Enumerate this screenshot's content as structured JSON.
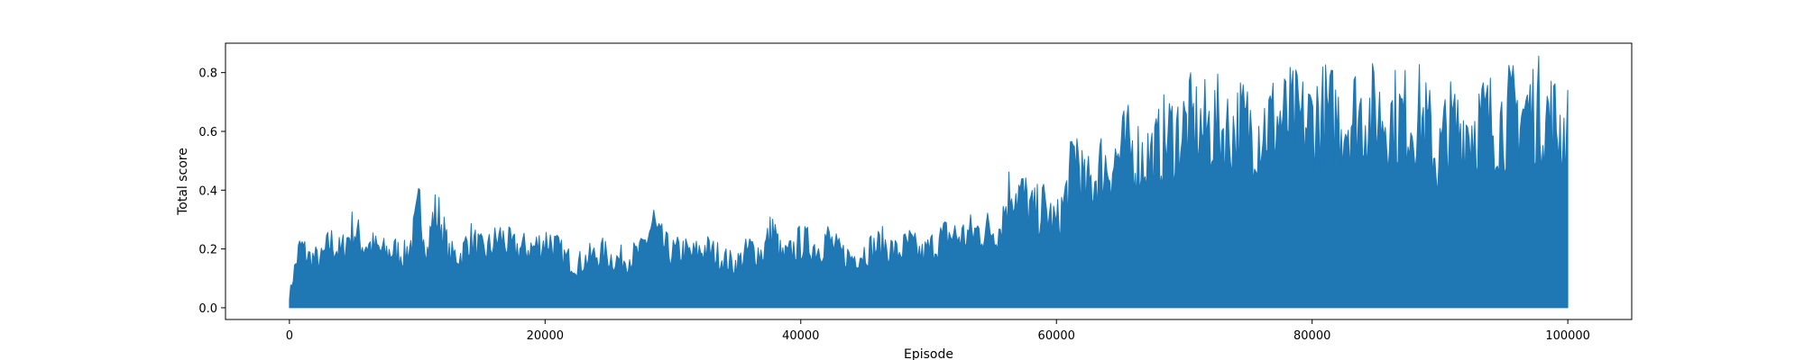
{
  "chart_data": {
    "type": "line",
    "title": "",
    "xlabel": "Episode",
    "ylabel": "Total score",
    "xlim": [
      -5000,
      105000
    ],
    "ylim": [
      -0.04,
      0.9
    ],
    "x_ticks": [
      0,
      20000,
      40000,
      60000,
      80000,
      100000
    ],
    "y_ticks": [
      0.0,
      0.2,
      0.4,
      0.6,
      0.8
    ],
    "x_tick_labels": [
      "0",
      "20000",
      "40000",
      "60000",
      "80000",
      "100000"
    ],
    "y_tick_labels": [
      "0.0",
      "0.2",
      "0.4",
      "0.6",
      "0.8"
    ],
    "grid": false,
    "legend": "none",
    "line_color": "#1f77b4",
    "series": [
      {
        "x": [
          0,
          300,
          700,
          900,
          1500,
          2500,
          3200,
          4000,
          4800,
          5000,
          5800,
          6000,
          7500,
          8200,
          9000,
          9600,
          10200,
          10800,
          11300,
          11800,
          12500,
          13500,
          14000,
          15200,
          16500,
          17500,
          19000,
          20300,
          21500,
          22500,
          23500,
          24500,
          25500,
          26500,
          27500,
          28500,
          28800,
          29800,
          30800,
          31500,
          32500,
          33500,
          34800,
          35300,
          36000,
          37000,
          37800,
          38500,
          39000,
          40000,
          41500,
          42000,
          43000,
          44000,
          45500,
          46500,
          47500,
          48500,
          49500,
          50500,
          51500,
          52500,
          53500,
          54500,
          55500,
          56500,
          57500,
          58200,
          59000,
          60000,
          60600,
          61100,
          61500,
          62200,
          62800,
          63500,
          64500,
          65500,
          66500,
          67800,
          68500,
          69500,
          70500,
          71500,
          72500,
          73500,
          74500,
          75500,
          76500,
          77500,
          78500,
          79500,
          80500,
          81500,
          82500,
          83500,
          84500,
          85500,
          86500,
          87500,
          88500,
          89300,
          89800,
          90500,
          91500,
          92500,
          93500,
          94500,
          95500,
          96500,
          97500,
          98500,
          99300,
          100000
        ],
        "y": [
          0.05,
          0.14,
          0.24,
          0.27,
          0.22,
          0.21,
          0.29,
          0.24,
          0.33,
          0.35,
          0.27,
          0.28,
          0.24,
          0.25,
          0.23,
          0.29,
          0.45,
          0.25,
          0.41,
          0.39,
          0.23,
          0.23,
          0.31,
          0.24,
          0.31,
          0.26,
          0.26,
          0.3,
          0.22,
          0.19,
          0.22,
          0.24,
          0.21,
          0.22,
          0.24,
          0.38,
          0.31,
          0.24,
          0.25,
          0.23,
          0.26,
          0.23,
          0.19,
          0.21,
          0.26,
          0.24,
          0.35,
          0.22,
          0.23,
          0.29,
          0.26,
          0.31,
          0.24,
          0.22,
          0.26,
          0.28,
          0.24,
          0.28,
          0.23,
          0.28,
          0.32,
          0.31,
          0.33,
          0.34,
          0.35,
          0.54,
          0.48,
          0.41,
          0.44,
          0.36,
          0.46,
          0.57,
          0.72,
          0.51,
          0.55,
          0.62,
          0.64,
          0.7,
          0.66,
          0.67,
          0.74,
          0.77,
          0.8,
          0.78,
          0.8,
          0.77,
          0.8,
          0.78,
          0.81,
          0.82,
          0.83,
          0.8,
          0.85,
          0.84,
          0.82,
          0.86,
          0.84,
          0.85,
          0.83,
          0.83,
          0.84,
          0.75,
          0.63,
          0.78,
          0.79,
          0.8,
          0.82,
          0.81,
          0.84,
          0.86,
          0.87,
          0.84,
          0.79,
          0.74
        ]
      }
    ]
  }
}
